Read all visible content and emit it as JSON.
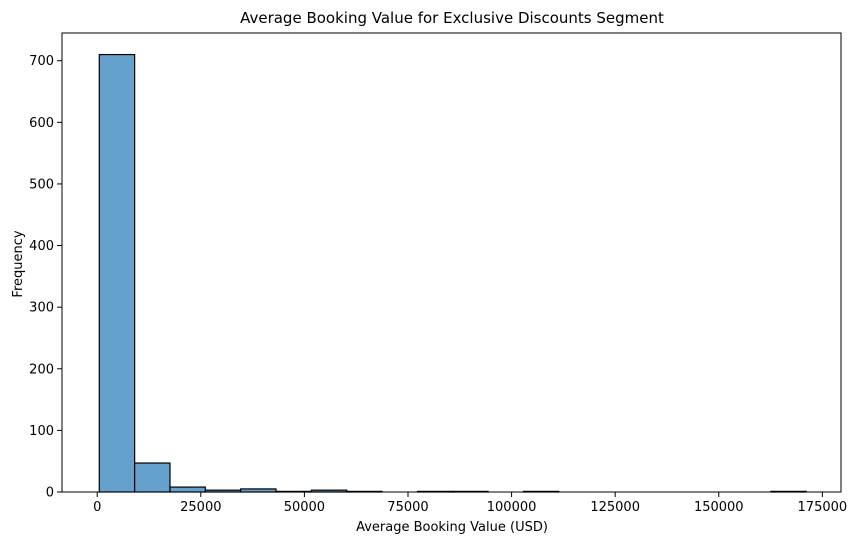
{
  "chart_data": {
    "type": "bar",
    "title": "Average Booking Value for Exclusive Discounts Segment",
    "xlabel": "Average Booking Value (USD)",
    "ylabel": "Frequency",
    "xlim": [
      -8500,
      179500
    ],
    "ylim": [
      0,
      745
    ],
    "xticks": [
      0,
      25000,
      50000,
      75000,
      100000,
      125000,
      150000,
      175000
    ],
    "yticks": [
      0,
      100,
      200,
      300,
      400,
      500,
      600,
      700
    ],
    "bin_edges": [
      500,
      9030,
      17560,
      26090,
      34620,
      43150,
      51680,
      60210,
      68740,
      77270,
      85800,
      94330,
      102860,
      111390,
      119920,
      128450,
      136980,
      145510,
      154040,
      162570,
      171100
    ],
    "values": [
      710,
      47,
      8,
      3,
      5,
      1,
      3,
      1,
      0,
      1,
      1,
      0,
      1,
      0,
      0,
      0,
      0,
      0,
      0,
      1
    ],
    "bar_color": "#64a1cc",
    "edge_color": "#000000",
    "grid": false
  }
}
